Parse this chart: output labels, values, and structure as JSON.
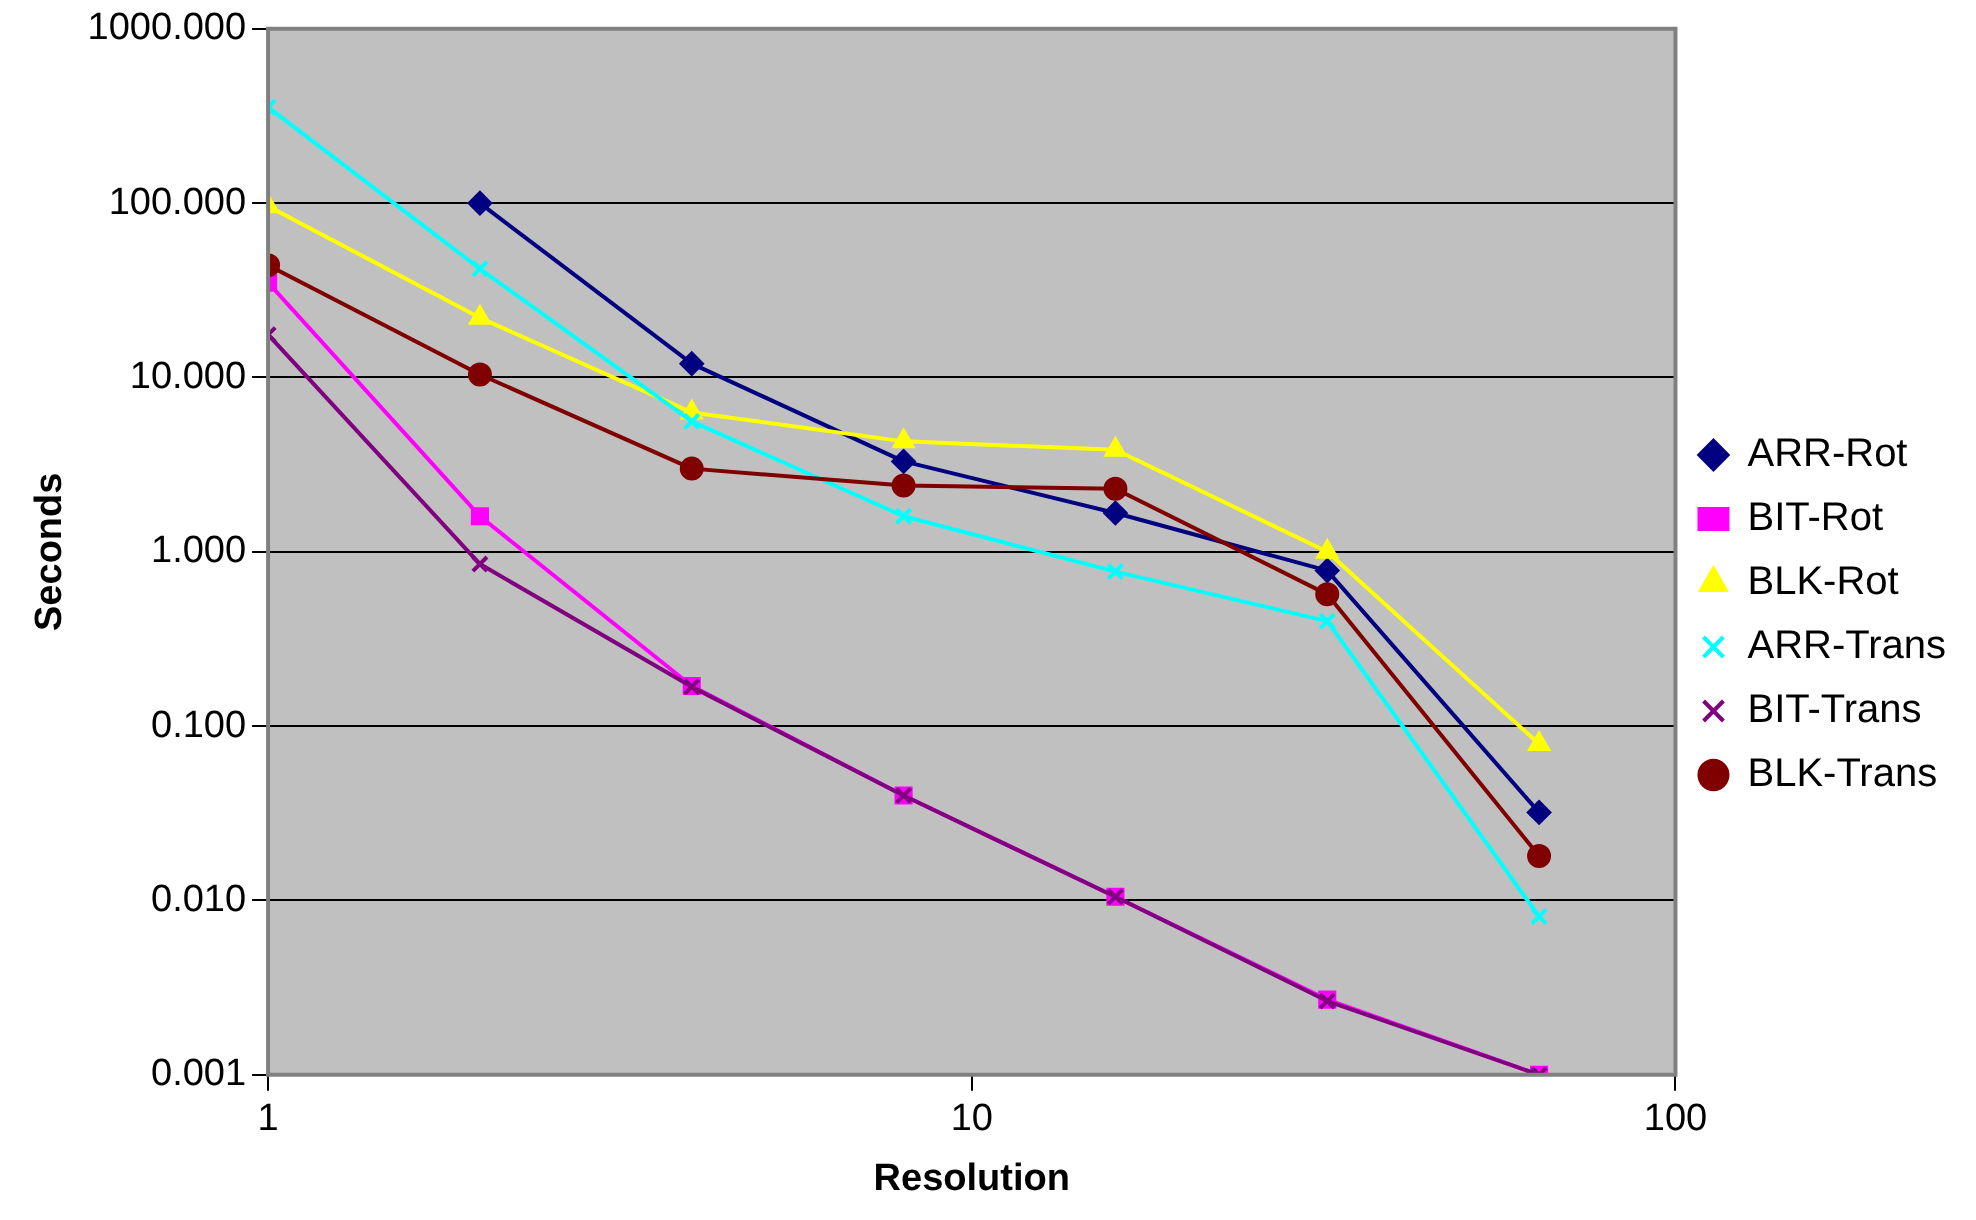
{
  "chart_data": {
    "type": "line",
    "xlabel": "Resolution",
    "ylabel": "Seconds",
    "log": "xy",
    "grid": "y",
    "legend": "right",
    "x": [
      1,
      2,
      4,
      8,
      16,
      32,
      64
    ],
    "xlim": [
      1,
      100
    ],
    "xticks": [
      1,
      10,
      100
    ],
    "ylim": [
      0.001,
      1000
    ],
    "yticks": [
      {
        "value": 0.001,
        "label": "0.001"
      },
      {
        "value": 0.01,
        "label": "0.010"
      },
      {
        "value": 0.1,
        "label": "0.100"
      },
      {
        "value": 1,
        "label": "1.000"
      },
      {
        "value": 10,
        "label": "10.000"
      },
      {
        "value": 100,
        "label": "100.000"
      },
      {
        "value": 1000,
        "label": "1000.000"
      }
    ],
    "series": [
      {
        "name": "ARR-Rot",
        "color": "#000080",
        "marker": "diamond",
        "values": [
          null,
          100,
          12,
          3.3,
          1.67,
          0.78,
          0.032
        ]
      },
      {
        "name": "BIT-Rot",
        "color": "#ff00ff",
        "marker": "square",
        "values": [
          35,
          1.6,
          0.17,
          0.04,
          0.0105,
          0.0027,
          0.001
        ]
      },
      {
        "name": "BLK-Rot",
        "color": "#ffff00",
        "marker": "triangle",
        "values": [
          96,
          22,
          6.3,
          4.3,
          3.85,
          1.0,
          0.079
        ]
      },
      {
        "name": "ARR-Trans",
        "color": "#00ffff",
        "marker": "cross",
        "values": [
          355,
          42,
          5.6,
          1.6,
          0.77,
          0.4,
          0.0081
        ]
      },
      {
        "name": "BIT-Trans",
        "color": "#800080",
        "marker": "cross",
        "values": [
          17.6,
          0.85,
          0.168,
          0.04,
          0.0105,
          0.00265,
          0.001
        ]
      },
      {
        "name": "BLK-Trans",
        "color": "#800000",
        "marker": "circle",
        "values": [
          44,
          10.4,
          3.0,
          2.4,
          2.3,
          0.57,
          0.018
        ]
      }
    ]
  }
}
